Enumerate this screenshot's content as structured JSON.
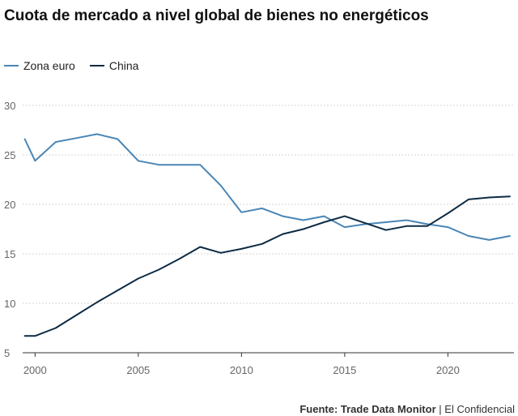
{
  "title": "Cuota de mercado a nivel global de bienes no energéticos",
  "footer": {
    "source": "Fuente: Trade Data Monitor",
    "separator": "|",
    "publisher": "El Confidencial"
  },
  "chart_data": {
    "type": "line",
    "title": "Cuota de mercado a nivel global de bienes no energéticos",
    "xlabel": "",
    "ylabel": "",
    "xlim": [
      1999.4,
      2023.2
    ],
    "ylim": [
      5,
      30
    ],
    "x_ticks": [
      2000,
      2005,
      2010,
      2015,
      2020
    ],
    "y_ticks": [
      5,
      10,
      15,
      20,
      25,
      30
    ],
    "grid": true,
    "legend_position": "top-left",
    "series": [
      {
        "name": "Zona euro",
        "color": "#4a86b6",
        "x": [
          1999.5,
          2000,
          2001,
          2002,
          2003,
          2004,
          2005,
          2006,
          2007,
          2008,
          2009,
          2010,
          2011,
          2012,
          2013,
          2014,
          2015,
          2016,
          2017,
          2018,
          2019,
          2020,
          2021,
          2022,
          2023
        ],
        "values": [
          26.6,
          24.4,
          26.3,
          26.7,
          27.1,
          26.6,
          24.4,
          24.0,
          24.0,
          24.0,
          21.9,
          19.2,
          19.6,
          18.8,
          18.4,
          18.8,
          17.7,
          18.0,
          18.2,
          18.4,
          18.0,
          17.7,
          16.8,
          16.4,
          16.8
        ]
      },
      {
        "name": "China",
        "color": "#0d2b45",
        "x": [
          1999.5,
          2000,
          2001,
          2002,
          2003,
          2004,
          2005,
          2006,
          2007,
          2008,
          2009,
          2010,
          2011,
          2012,
          2013,
          2014,
          2015,
          2016,
          2017,
          2018,
          2019,
          2020,
          2021,
          2022,
          2023
        ],
        "values": [
          6.7,
          6.7,
          7.5,
          8.8,
          10.1,
          11.3,
          12.5,
          13.4,
          14.5,
          15.7,
          15.1,
          15.5,
          16.0,
          17.0,
          17.5,
          18.2,
          18.8,
          18.1,
          17.4,
          17.8,
          17.8,
          19.1,
          20.5,
          20.7,
          20.8
        ]
      }
    ]
  }
}
